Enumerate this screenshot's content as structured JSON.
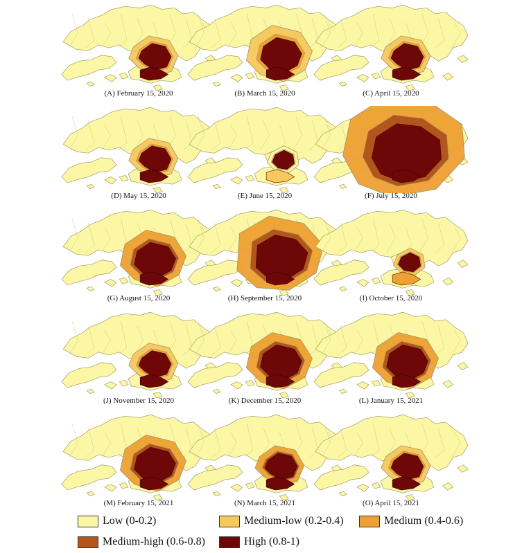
{
  "colors": {
    "low": "#FBF7A4",
    "medium_low": "#F7C85E",
    "medium": "#EFA033",
    "medium_high": "#B3561C",
    "high": "#6E0707"
  },
  "panels": [
    {
      "caption": "(A) February 15, 2020",
      "core": "high",
      "ring": "medium",
      "spread": "medium_low",
      "level": 2
    },
    {
      "caption": "(B) March 15, 2020",
      "core": "high",
      "ring": "medium",
      "spread": "medium_low",
      "level": 3
    },
    {
      "caption": "(C) April 15, 2020",
      "core": "high",
      "ring": "medium",
      "spread": "medium_low",
      "level": 2
    },
    {
      "caption": "(D) May 15, 2020",
      "core": "high",
      "ring": "medium",
      "spread": "medium_low",
      "level": 2
    },
    {
      "caption": "(E) June 15, 2020",
      "core": "high",
      "ring": "medium_low",
      "spread": "low",
      "level": 1
    },
    {
      "caption": "(F) July 15, 2020",
      "core": "high",
      "ring": "medium_high",
      "spread": "medium",
      "level": 5
    },
    {
      "caption": "(G) August 15, 2020",
      "core": "high",
      "ring": "medium_high",
      "spread": "medium",
      "level": 3
    },
    {
      "caption": "(H) September 15, 2020",
      "core": "high",
      "ring": "medium_high",
      "spread": "medium",
      "level": 4
    },
    {
      "caption": "(I) October 15, 2020",
      "core": "high",
      "ring": "medium",
      "spread": "medium_low",
      "level": 1
    },
    {
      "caption": "(J) November 15, 2020",
      "core": "high",
      "ring": "medium",
      "spread": "medium_low",
      "level": 2
    },
    {
      "caption": "(K) December 15, 2020",
      "core": "high",
      "ring": "medium_high",
      "spread": "medium",
      "level": 3
    },
    {
      "caption": "(L) January 15, 2021",
      "core": "high",
      "ring": "medium_high",
      "spread": "medium",
      "level": 3
    },
    {
      "caption": "(M) February 15, 2021",
      "core": "high",
      "ring": "medium_high",
      "spread": "medium",
      "level": 3
    },
    {
      "caption": "(N) March 15, 2021",
      "core": "high",
      "ring": "medium_high",
      "spread": "medium",
      "level": 2
    },
    {
      "caption": "(O) April 15, 2021",
      "core": "high",
      "ring": "medium",
      "spread": "medium_low",
      "level": 2
    }
  ],
  "legend": [
    {
      "label": "Low (0-0.2)",
      "color_key": "low"
    },
    {
      "label": "Medium-low (0.2-0.4)",
      "color_key": "medium_low"
    },
    {
      "label": "Medium (0.4-0.6)",
      "color_key": "medium"
    },
    {
      "label": "Medium-high (0.6-0.8)",
      "color_key": "medium_high"
    },
    {
      "label": "High (0.8-1)",
      "color_key": "high"
    }
  ]
}
